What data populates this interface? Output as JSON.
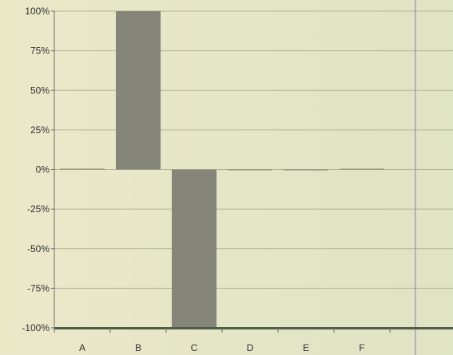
{
  "chart_data": {
    "type": "bar",
    "title": "",
    "xlabel": "",
    "ylabel": "",
    "categories": [
      "A",
      "B",
      "C",
      "D",
      "E",
      "F"
    ],
    "values": [
      0.5,
      100,
      -100,
      0,
      0,
      0.5
    ],
    "ylim": [
      -100,
      100
    ],
    "yticks": [
      100,
      75,
      50,
      25,
      0,
      -25,
      -50,
      -75,
      -100
    ],
    "ytick_labels": [
      "100%",
      "75%",
      "50%",
      "25%",
      "0%",
      "-25%",
      "-50%",
      "-75%",
      "-100%"
    ],
    "grid": true,
    "legend": "none",
    "colors": {
      "bar": "#85857a",
      "gridline": "#b3b59a",
      "axis": "#6d6f66",
      "baseline_band": "#4f5f47",
      "marker_line": "#8b90b8"
    }
  }
}
